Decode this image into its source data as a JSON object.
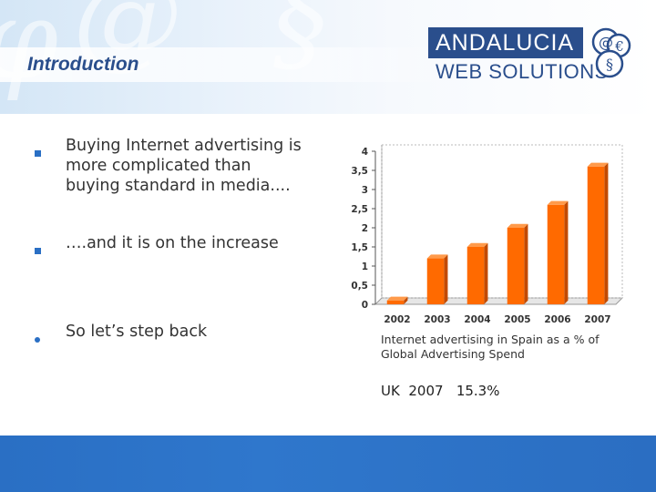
{
  "slide": {
    "title": "Introduction"
  },
  "logo": {
    "line1": "ANDALUCIA",
    "line2": "WEB SOLUTIONS",
    "colors": {
      "primary": "#2a4e8c",
      "accent": "#ff6a00"
    }
  },
  "bullets": [
    {
      "marker": "square",
      "lines": [
        "Buying Internet advertising  is",
        "more complicated than",
        "buying standard in media...."
      ]
    },
    {
      "marker": "square",
      "lines": [
        "….and it is on the increase"
      ]
    },
    {
      "marker": "dot",
      "lines": [
        "So let’s step back"
      ]
    }
  ],
  "chart_data": {
    "type": "bar",
    "title": "",
    "xlabel": "",
    "ylabel": "",
    "categories": [
      "2002",
      "2003",
      "2004",
      "2005",
      "2006",
      "2007"
    ],
    "values": [
      0.1,
      1.2,
      1.5,
      2.0,
      2.6,
      3.6
    ],
    "yticks": [
      "0",
      "0,5",
      "1",
      "1,5",
      "2",
      "2,5",
      "3",
      "3,5",
      "4"
    ],
    "ylim": [
      0,
      4
    ],
    "grid": false,
    "bar_color": "#ff6a00",
    "bar_side_color": "#c24a00"
  },
  "caption": {
    "line1": "Internet advertising in Spain as a % of",
    "line2": "Global Advertising Spend"
  },
  "uk_note": "UK  2007   15.3%",
  "colors": {
    "footer": "#2a6fc4",
    "bullet": "#2a6fc4",
    "title": "#2a4e8c"
  }
}
